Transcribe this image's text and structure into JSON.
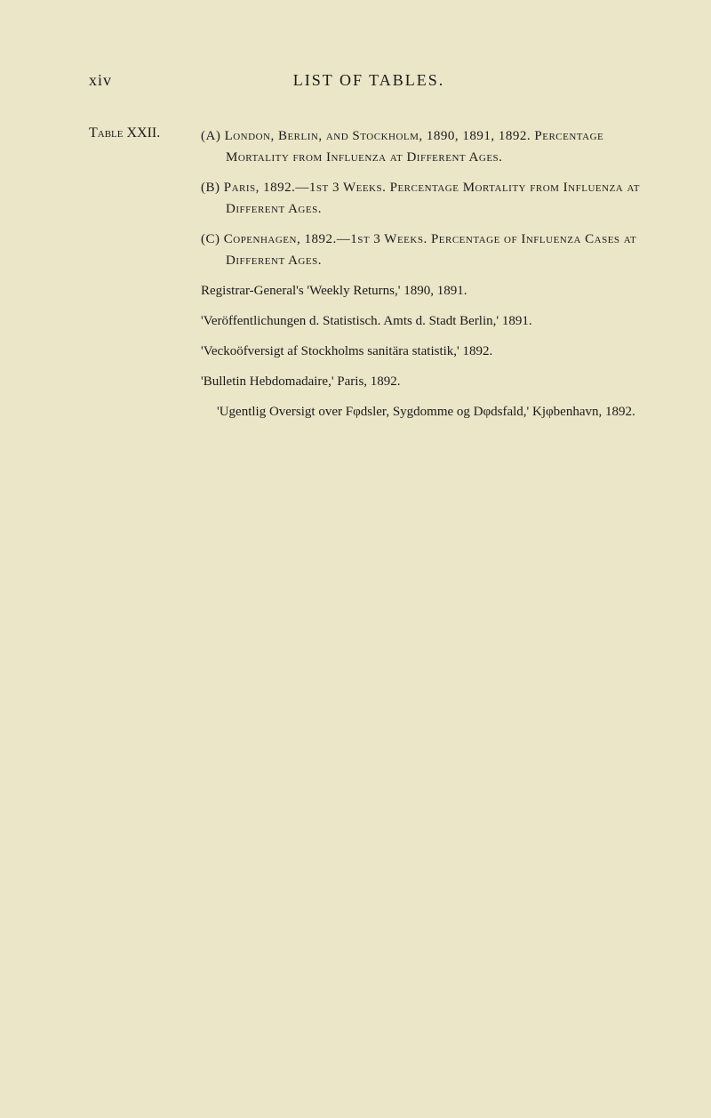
{
  "header": {
    "pageRoman": "xiv",
    "title": "LIST OF TABLES."
  },
  "table": {
    "label": "Table XXII.",
    "items": [
      "(A) London, Berlin, and Stockholm, 1890, 1891, 1892. Percentage Mortality from Influenza at Different Ages.",
      "(B) Paris, 1892.—1st 3 Weeks. Percentage Mortality from Influenza at Different Ages.",
      "(C) Copenhagen, 1892.—1st 3 Weeks. Percentage of Influenza Cases at Different Ages."
    ],
    "sources": [
      "Registrar-General's 'Weekly Returns,' 1890, 1891.",
      "'Veröffentlichungen d. Statistisch. Amts d. Stadt Berlin,' 1891.",
      "'Veckoöfversigt af Stockholms sanitära statistik,' 1892.",
      "'Bulletin Hebdomadaire,' Paris, 1892.",
      "'Ugentlig Oversigt over Fφdsler, Sygdomme og Dφdsfald,' Kjφbenhavn, 1892."
    ]
  }
}
